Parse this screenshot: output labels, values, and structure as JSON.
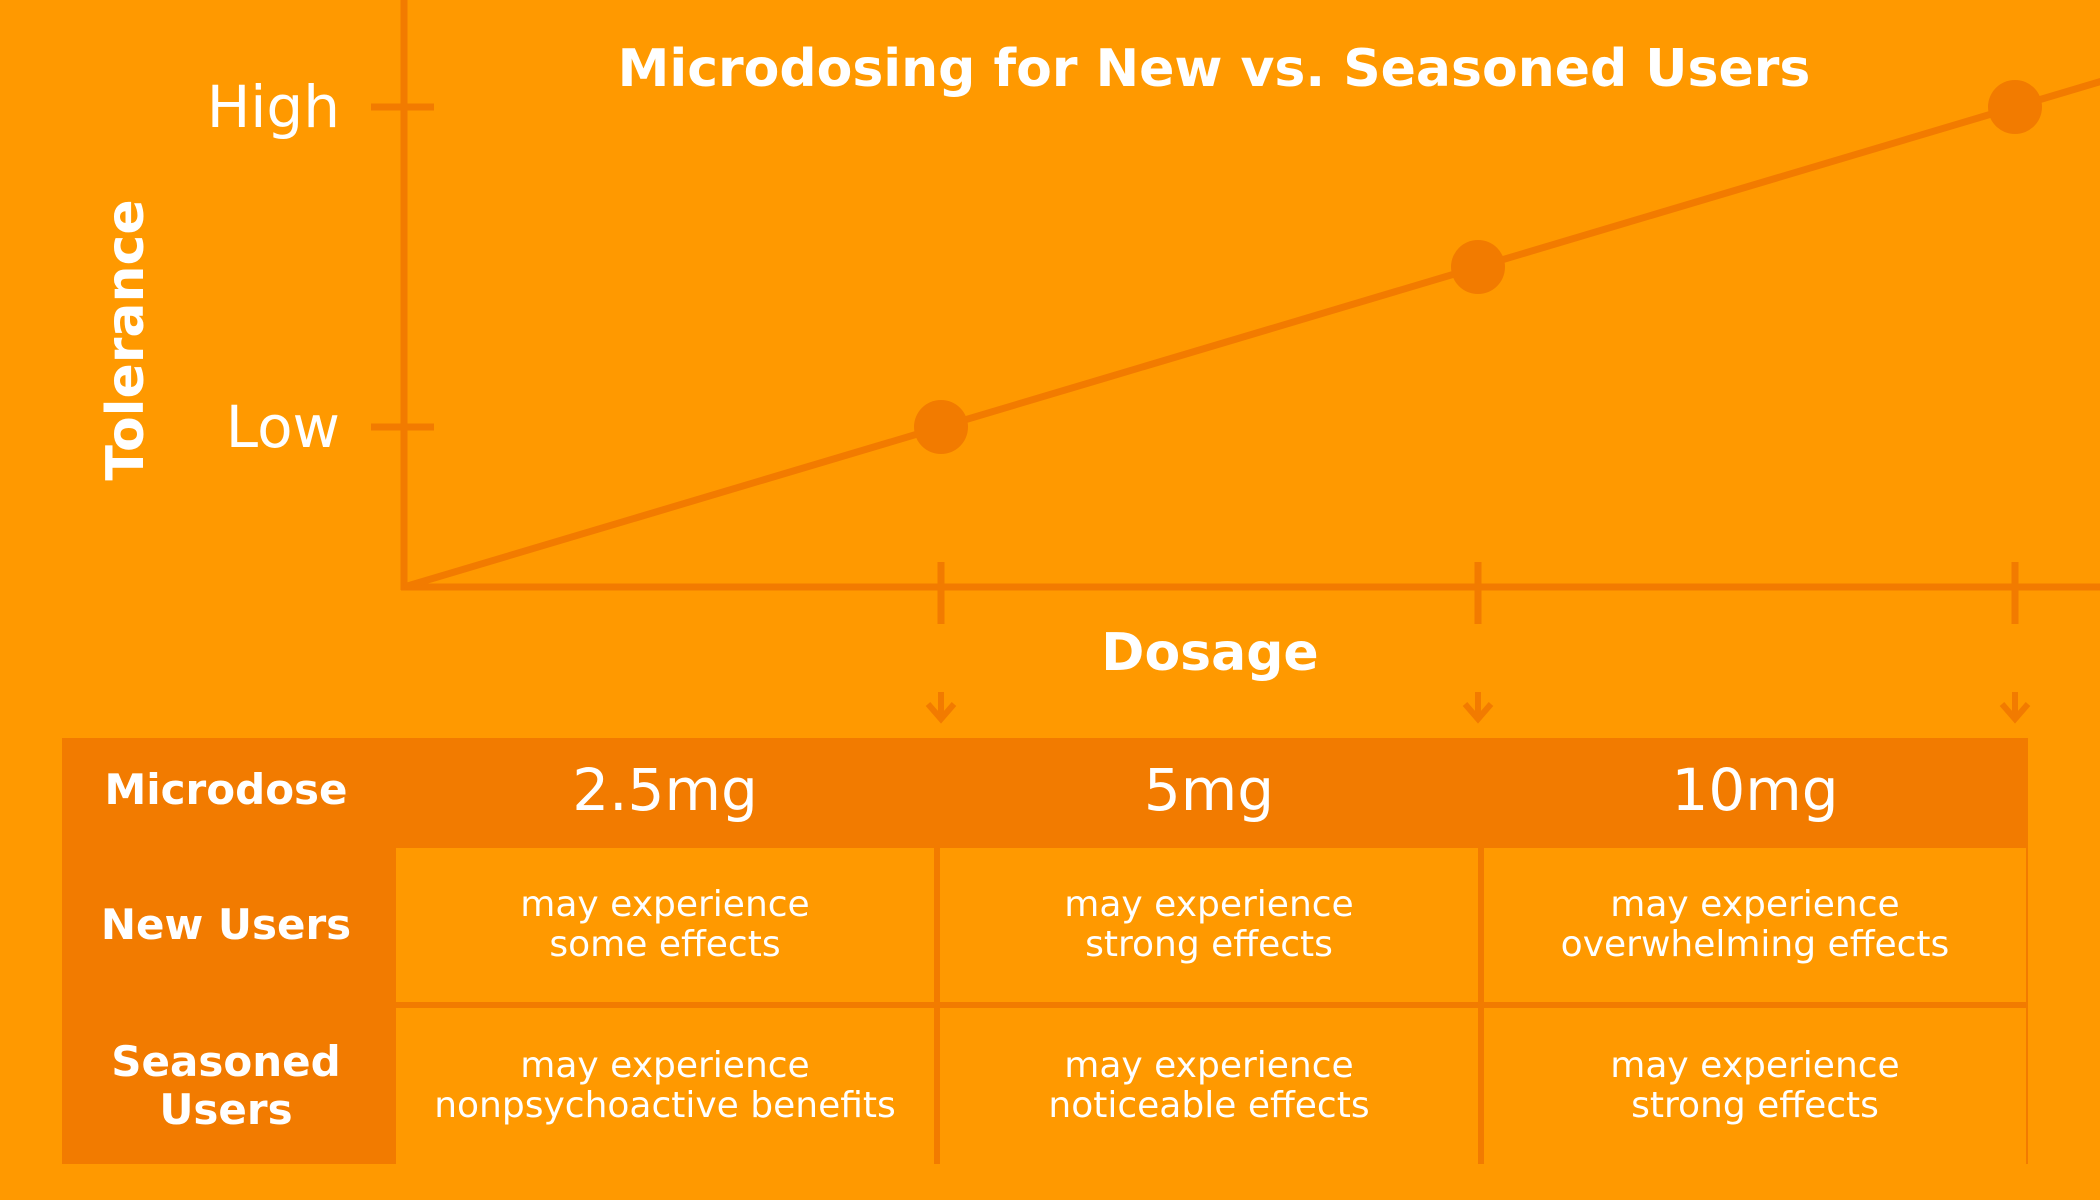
{
  "chart_data": {
    "type": "line",
    "title": "Microdosing for New vs. Seasoned Users",
    "xlabel": "Dosage",
    "ylabel": "Tolerance",
    "categories": [
      "2.5mg",
      "5mg",
      "10mg"
    ],
    "x": [
      1,
      2,
      3
    ],
    "y": [
      1,
      2,
      3
    ],
    "xlim": [
      0,
      3.5
    ],
    "ylim": [
      0,
      3.5
    ],
    "y_ticks": [
      {
        "value": 1,
        "label": "Low"
      },
      {
        "value": 3,
        "label": "High"
      }
    ],
    "series": [
      {
        "name": "Tolerance vs Dosage",
        "values": [
          1,
          2,
          3
        ]
      }
    ],
    "legend": "none",
    "grid": false
  },
  "colors": {
    "background": "#FF9900",
    "accent": "#F27B00",
    "text": "#ffffff"
  },
  "table": {
    "rows": [
      {
        "header": "Microdose",
        "cells": [
          "2.5mg",
          "5mg",
          "10mg"
        ]
      },
      {
        "header": "New Users",
        "cells": [
          "may experience\nsome effects",
          "may experience\nstrong effects",
          "may experience\noverwhelming effects"
        ]
      },
      {
        "header": "Seasoned\nUsers",
        "cells": [
          "may experience\nnonpsychoactive benefits",
          "may experience\nnoticeable effects",
          "may experience\nstrong effects"
        ]
      }
    ]
  }
}
